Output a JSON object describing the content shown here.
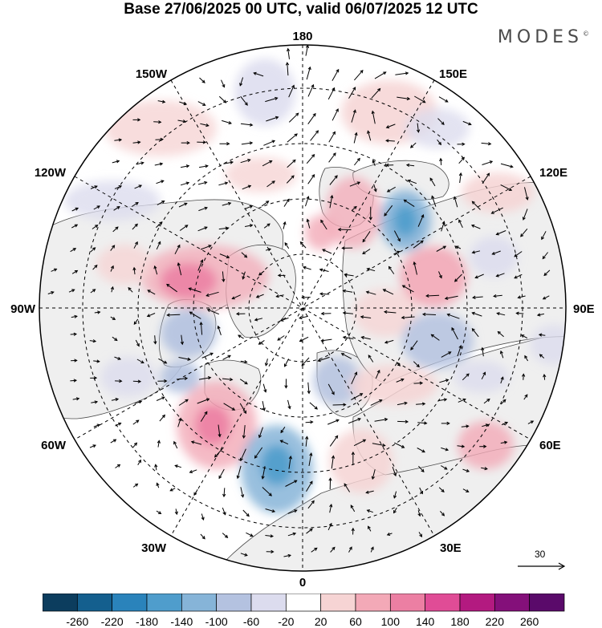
{
  "title": "Base 27/06/2025 00 UTC, valid 06/07/2025 12 UTC",
  "brand": "MODES",
  "brand_mark": "©",
  "longitude_labels": {
    "top": "180",
    "bottom": "0",
    "left": "90W",
    "right": "90E",
    "upper_left": "150W",
    "upper_right": "150E",
    "mid_left_upper": "120W",
    "mid_right_upper": "120E",
    "mid_left_lower": "60W",
    "mid_right_lower": "60E",
    "lower_left": "30W",
    "lower_right": "30E"
  },
  "vector_scale_label": "30",
  "colorbar": {
    "ticks": [
      "-260",
      "-220",
      "-180",
      "-140",
      "-100",
      "-60",
      "-20",
      "20",
      "60",
      "100",
      "140",
      "180",
      "220",
      "260"
    ],
    "colors": [
      "#0c3d5e",
      "#145f8e",
      "#2a83bb",
      "#4f9dcc",
      "#86b4d8",
      "#b4c2e0",
      "#dcdcee",
      "#ffffff",
      "#f6d4d4",
      "#f3a9b7",
      "#ec7fa3",
      "#e04c96",
      "#b31a80",
      "#84107a",
      "#5a0a6a"
    ]
  },
  "colors": {
    "land": "#efefef",
    "ocean": "#ffffff",
    "coast": "#4d4d4d",
    "grid": "#000000"
  }
}
